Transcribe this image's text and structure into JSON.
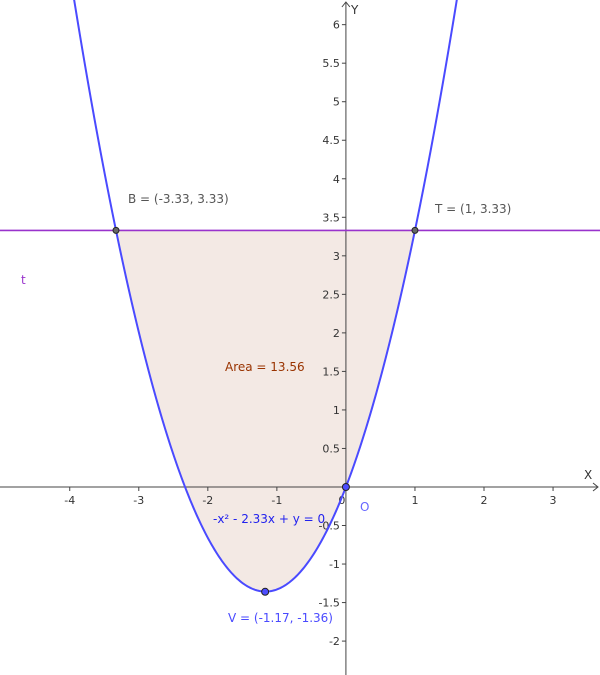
{
  "chart_data": {
    "type": "line",
    "xlabel": "X",
    "ylabel": "Y",
    "xlim": [
      -5.01,
      3.68
    ],
    "ylim": [
      -2.44,
      6.32
    ],
    "grid": false,
    "x_ticks": [
      -4,
      -3,
      -2,
      -1,
      0,
      1,
      2,
      3
    ],
    "y_ticks": [
      -2,
      -1.5,
      -1,
      -0.5,
      0.5,
      1,
      1.5,
      2,
      2.5,
      3,
      3.5,
      4,
      4.5,
      5,
      5.5,
      6
    ],
    "parabola": {
      "equation": "-x² - 2.33x + y = 0",
      "a": 1,
      "b": 2.33,
      "c": 0,
      "color": "#4a4aff"
    },
    "line_t": {
      "name": "t",
      "y": 3.33,
      "color": "#9933cc"
    },
    "points": [
      {
        "name": "B",
        "label": "B = (-3.33, 3.33)",
        "x": -3.33,
        "y": 3.33
      },
      {
        "name": "T",
        "label": "T = (1, 3.33)",
        "x": 1,
        "y": 3.33
      },
      {
        "name": "V",
        "label": "V = (-1.17, -1.36)",
        "x": -1.17,
        "y": -1.36
      },
      {
        "name": "O",
        "label": "O",
        "x": 0,
        "y": 0
      }
    ],
    "shaded_region": {
      "label": "Area = 13.56",
      "x_from": -3.33,
      "x_to": 1,
      "fill": "#f3e9e4",
      "label_color": "#993300"
    }
  }
}
